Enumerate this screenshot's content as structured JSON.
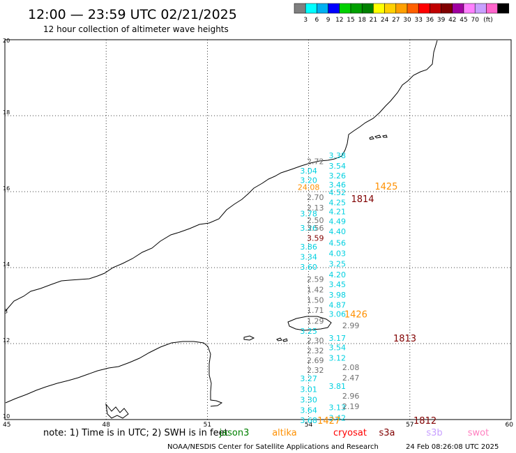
{
  "title": "12:00 — 23:59 UTC 02/21/2025",
  "subtitle": "12 hour collection of altimeter wave heights",
  "colorbar": {
    "colors": [
      "#7f7f7f",
      "#00ffff",
      "#00b0f0",
      "#0000ff",
      "#00d000",
      "#00a000",
      "#008000",
      "#ffff00",
      "#ffd000",
      "#ffa000",
      "#ff6000",
      "#ff0000",
      "#c00000",
      "#800000",
      "#a000a0",
      "#ff80ff",
      "#c8a0ff",
      "#ff66cc",
      "#000000"
    ],
    "labels": [
      "3",
      "6",
      "9",
      "12",
      "15",
      "18",
      "21",
      "24",
      "27",
      "30",
      "33",
      "36",
      "39",
      "42",
      "45",
      "70"
    ],
    "unit": "(ft)"
  },
  "axes": {
    "lon_ticks": [
      45,
      48,
      51,
      54,
      57,
      60
    ],
    "lat_ticks": [
      10,
      12,
      14,
      16,
      18,
      20
    ],
    "lon_range": [
      45,
      60
    ],
    "lat_range": [
      10,
      20
    ]
  },
  "side_tick": "3",
  "tracks": [
    {
      "color": "#00d0e0",
      "lon": 54.85,
      "points": [
        {
          "lat": 16.95,
          "v": "3.38"
        },
        {
          "lat": 16.68,
          "v": "3.54"
        },
        {
          "lat": 16.42,
          "v": "3.26"
        },
        {
          "lat": 16.18,
          "v": "3.46"
        },
        {
          "lat": 15.98,
          "v": "4.52"
        },
        {
          "lat": 15.72,
          "v": "4.25"
        },
        {
          "lat": 15.48,
          "v": "4.21"
        },
        {
          "lat": 15.22,
          "v": "4.49"
        },
        {
          "lat": 14.95,
          "v": "4.40"
        },
        {
          "lat": 14.65,
          "v": "4.56"
        },
        {
          "lat": 14.38,
          "v": "4.03"
        },
        {
          "lat": 14.1,
          "v": "3.25"
        },
        {
          "lat": 13.82,
          "v": "4.20"
        },
        {
          "lat": 13.56,
          "v": "3.45"
        },
        {
          "lat": 13.28,
          "v": "3.98"
        },
        {
          "lat": 13.02,
          "v": "4.87"
        },
        {
          "lat": 12.78,
          "v": "3.06"
        },
        {
          "lat": 12.15,
          "v": "3.17"
        },
        {
          "lat": 11.9,
          "v": "3.54"
        },
        {
          "lat": 11.62,
          "v": "3.12"
        },
        {
          "lat": 10.88,
          "v": "3.81"
        },
        {
          "lat": 10.32,
          "v": "3.13"
        },
        {
          "lat": 10.05,
          "v": "3.42"
        }
      ]
    },
    {
      "color": "#00d0e0",
      "lon": 54.0,
      "points": [
        {
          "lat": 16.55,
          "v": "3.04"
        },
        {
          "lat": 16.3,
          "v": "3.20"
        },
        {
          "lat": 15.42,
          "v": "3.78"
        },
        {
          "lat": 15.05,
          "v": "3.26"
        },
        {
          "lat": 14.55,
          "v": "3.86"
        },
        {
          "lat": 14.28,
          "v": "3.34"
        },
        {
          "lat": 14.02,
          "v": "3.60"
        },
        {
          "lat": 12.33,
          "v": "3.25"
        },
        {
          "lat": 11.08,
          "v": "3.27"
        },
        {
          "lat": 10.8,
          "v": "3.01"
        },
        {
          "lat": 10.52,
          "v": "3.30"
        },
        {
          "lat": 10.25,
          "v": "3.64"
        },
        {
          "lat": 9.98,
          "v": "3.68"
        }
      ]
    },
    {
      "color": "#707070",
      "lon": 54.2,
      "points": [
        {
          "lat": 16.8,
          "v": "2.72"
        },
        {
          "lat": 15.85,
          "v": "2.70"
        },
        {
          "lat": 15.58,
          "v": "2.13"
        },
        {
          "lat": 15.25,
          "v": "2.50"
        },
        {
          "lat": 15.05,
          "v": "3.56"
        },
        {
          "lat": 13.7,
          "v": "2.59"
        },
        {
          "lat": 13.42,
          "v": "1.42"
        },
        {
          "lat": 13.15,
          "v": "1.50"
        },
        {
          "lat": 12.88,
          "v": "1.71"
        },
        {
          "lat": 12.6,
          "v": "1.29"
        },
        {
          "lat": 12.08,
          "v": "2.30"
        },
        {
          "lat": 11.82,
          "v": "2.32"
        },
        {
          "lat": 11.56,
          "v": "2.69"
        },
        {
          "lat": 11.3,
          "v": "2.32"
        }
      ]
    },
    {
      "color": "#707070",
      "lon": 55.25,
      "points": [
        {
          "lat": 12.48,
          "v": "2.99"
        },
        {
          "lat": 11.38,
          "v": "2.08"
        },
        {
          "lat": 11.1,
          "v": "2.47"
        },
        {
          "lat": 10.62,
          "v": "2.96"
        },
        {
          "lat": 10.35,
          "v": "2.19"
        }
      ]
    },
    {
      "color": "#ff9000",
      "lon": 54.0,
      "points": [
        {
          "lat": 16.12,
          "v": "24.08"
        }
      ]
    },
    {
      "color": "#800000",
      "lon": 54.2,
      "points": [
        {
          "lat": 14.78,
          "v": "3.59"
        }
      ]
    }
  ],
  "passes": [
    {
      "text": "1425",
      "lon": 56.3,
      "lat": 16.15,
      "color": "#ff9000"
    },
    {
      "text": "1814",
      "lon": 55.6,
      "lat": 15.82,
      "color": "#800000"
    },
    {
      "text": "1426",
      "lon": 55.4,
      "lat": 12.78,
      "color": "#ff9000"
    },
    {
      "text": "1813",
      "lon": 56.85,
      "lat": 12.15,
      "color": "#800000"
    },
    {
      "text": "1427",
      "lon": 54.6,
      "lat": 9.98,
      "color": "#ff9000"
    },
    {
      "text": "1812",
      "lon": 57.45,
      "lat": 9.98,
      "color": "#800000"
    }
  ],
  "footer": {
    "note": "note:  1) Time is in UTC;  2) SWH is in feet",
    "satellites": [
      {
        "name": "jason3",
        "color": "#008000"
      },
      {
        "name": "altika",
        "color": "#ff9000"
      },
      {
        "name": "cryosat",
        "color": "#ff0000"
      },
      {
        "name": "s3a",
        "color": "#800000"
      },
      {
        "name": "s3b",
        "color": "#c8a0ff"
      },
      {
        "name": "swot",
        "color": "#ff80c0"
      }
    ],
    "credit": "NOAA/NESDIS Center for Satellite Applications and Research",
    "timestamp": "24 Feb 08:26:08 UTC 2025"
  }
}
